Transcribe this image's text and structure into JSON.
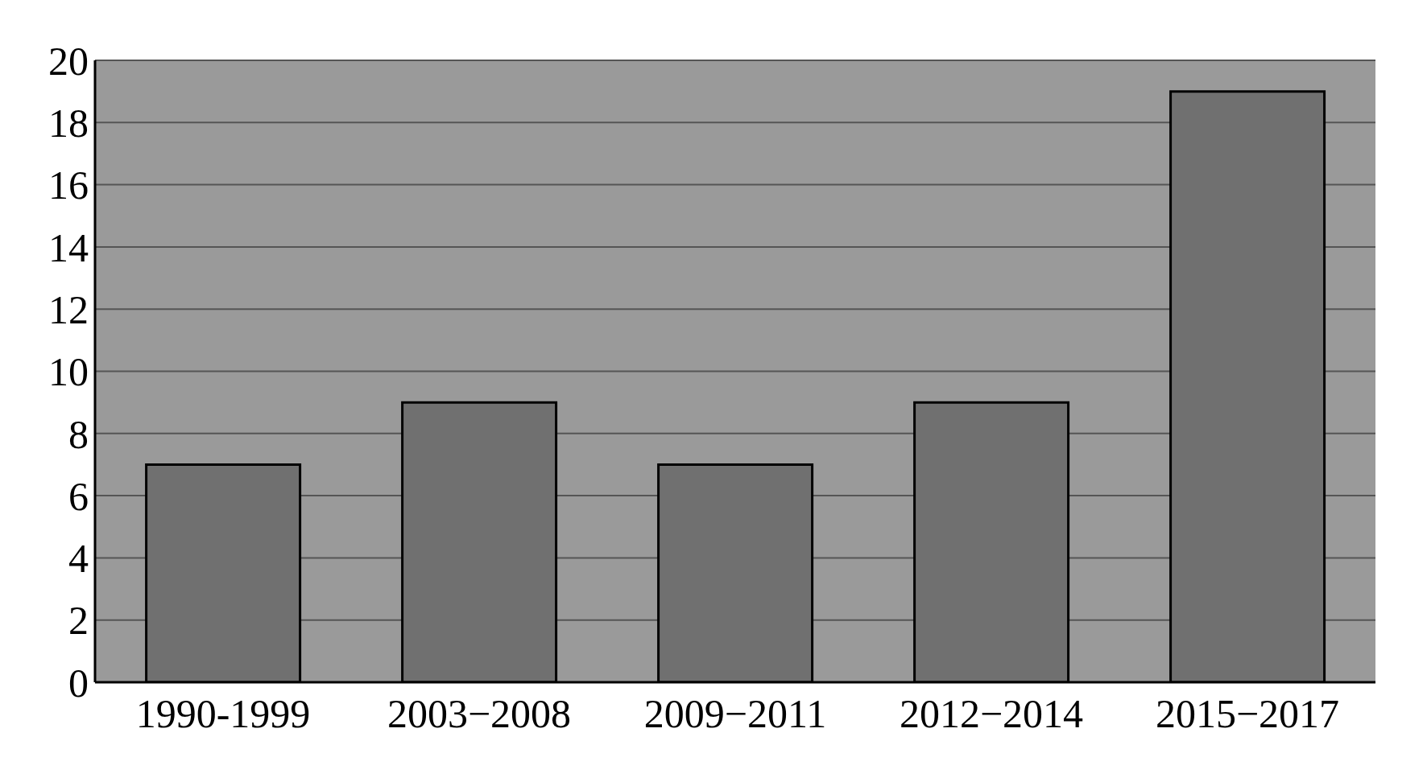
{
  "chart_data": {
    "type": "bar",
    "categories": [
      "1990-1999",
      "2003−2008",
      "2009−2011",
      "2012−2014",
      "2015−2017"
    ],
    "values": [
      7,
      9,
      7,
      9,
      19
    ],
    "color": "#707070",
    "ylim": [
      0,
      20
    ],
    "yticks": [
      0,
      2,
      4,
      6,
      8,
      10,
      12,
      14,
      16,
      18,
      20
    ],
    "grid": "y"
  }
}
